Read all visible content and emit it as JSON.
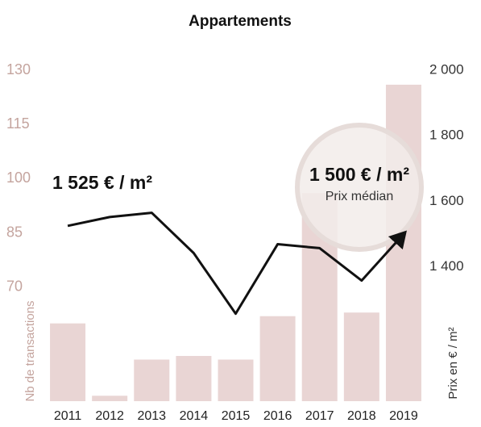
{
  "chart_data": {
    "type": "bar",
    "title": "Appartements",
    "ylabel": "Nb de transactions",
    "y2label": "Prix en € / m²",
    "annotation": "Prix médian",
    "categories": [
      "2011",
      "2012",
      "2013",
      "2014",
      "2015",
      "2016",
      "2017",
      "2018",
      "2019"
    ],
    "series": [
      {
        "name": "Nb de transactions",
        "type": "bar",
        "color": "#e9d5d4",
        "axis": "y",
        "values": [
          60,
          40,
          50,
          51,
          50,
          62,
          96,
          63,
          126
        ]
      },
      {
        "name": "Prix en € / m²",
        "type": "line",
        "color": "#111111",
        "axis": "y2",
        "values": [
          1525,
          1552,
          1565,
          1442,
          1257,
          1469,
          1457,
          1358,
          1500
        ],
        "value_labels": [
          "1 525 € / m²",
          null,
          null,
          null,
          null,
          null,
          null,
          null,
          "1 500 € / m²"
        ]
      }
    ],
    "ylim": [
      38.5,
      130
    ],
    "yticks": [
      70,
      85,
      100,
      115,
      130
    ],
    "y2lim": [
      990,
      2000
    ],
    "y2ticks": [
      {
        "value": 1400,
        "label": "1 400"
      },
      {
        "value": 1600,
        "label": "1 600"
      },
      {
        "value": 1800,
        "label": "1 800"
      },
      {
        "value": 2000,
        "label": "2 000"
      }
    ],
    "grid": false
  }
}
